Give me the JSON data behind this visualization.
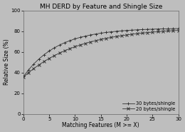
{
  "title": "MH DERD by Feature and Shingle Size",
  "xlabel": "Matching Features (M >= X)",
  "ylabel": "Relative Size (%)",
  "xlim": [
    0,
    30
  ],
  "ylim": [
    0,
    100
  ],
  "xticks": [
    0,
    5,
    10,
    15,
    20,
    25,
    30
  ],
  "yticks": [
    0,
    20,
    40,
    60,
    80,
    100
  ],
  "background_color": "#bebebe",
  "legend": [
    "30 bytes/shingle",
    "20 bytes/shingle"
  ],
  "line_color": "#333333",
  "title_fontsize": 6.5,
  "axis_fontsize": 5.5,
  "tick_fontsize": 5,
  "legend_fontsize": 4.8
}
